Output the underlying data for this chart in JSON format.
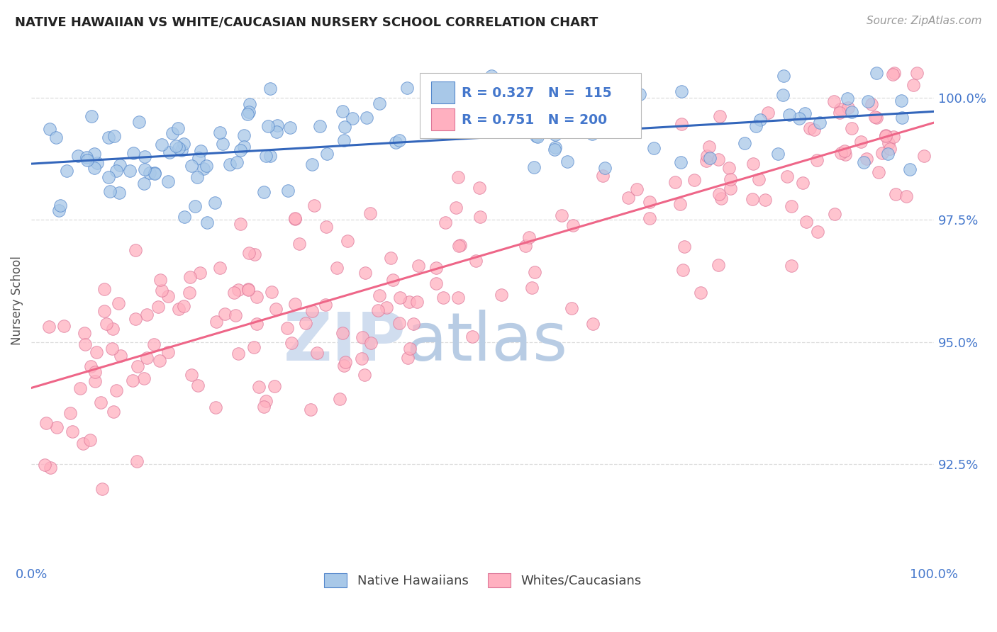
{
  "title": "NATIVE HAWAIIAN VS WHITE/CAUCASIAN NURSERY SCHOOL CORRELATION CHART",
  "source": "Source: ZipAtlas.com",
  "ylabel": "Nursery School",
  "ytick_labels": [
    "92.5%",
    "95.0%",
    "97.5%",
    "100.0%"
  ],
  "ytick_values": [
    92.5,
    95.0,
    97.5,
    100.0
  ],
  "ymin": 90.5,
  "ymax": 101.2,
  "xmin": -1.0,
  "xmax": 101.0,
  "legend_blue_r": "0.327",
  "legend_blue_n": "115",
  "legend_pink_r": "0.751",
  "legend_pink_n": "200",
  "legend_label_blue": "Native Hawaiians",
  "legend_label_pink": "Whites/Caucasians",
  "blue_fill": "#A8C8E8",
  "blue_edge": "#5588CC",
  "pink_fill": "#FFB0C0",
  "pink_edge": "#DD7799",
  "line_blue": "#3366BB",
  "line_pink": "#EE6688",
  "title_color": "#222222",
  "source_color": "#999999",
  "ylabel_color": "#555555",
  "axis_tick_color": "#4477CC",
  "grid_color": "#DDDDDD",
  "background_color": "#FFFFFF",
  "watermark_zip_color": "#D0DDEF",
  "watermark_atlas_color": "#B8CCE4",
  "blue_trend_start_y": 98.55,
  "blue_trend_end_y": 99.82,
  "pink_trend_start_y": 93.8,
  "pink_trend_end_y": 99.5
}
